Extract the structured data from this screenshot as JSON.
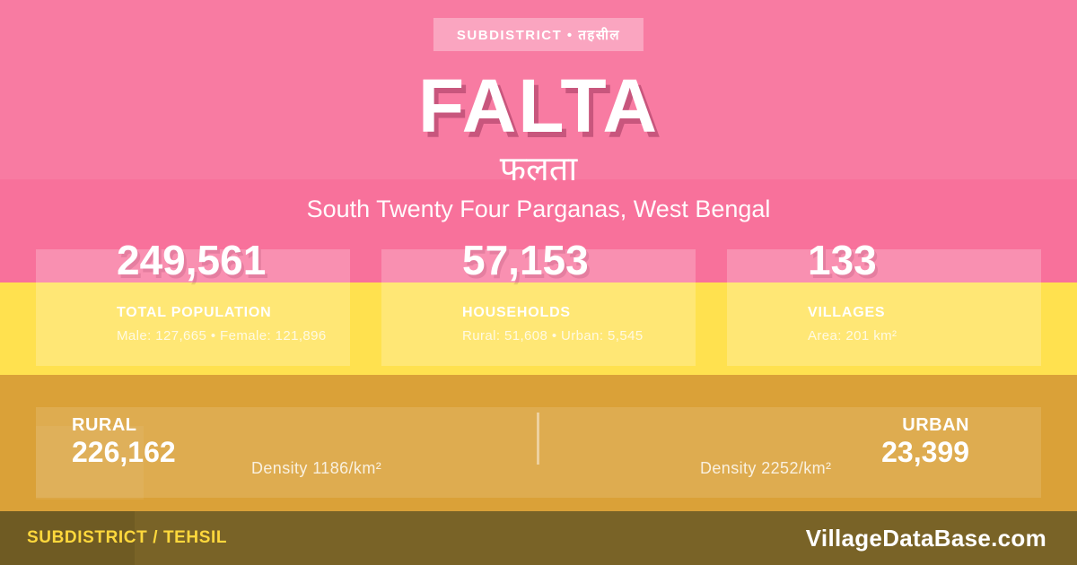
{
  "badge": {
    "label": "SUBDISTRICT • तहसील"
  },
  "title": "FALTA",
  "title_native": "फलता",
  "subtitle": "South Twenty Four Parganas, West Bengal",
  "stats": [
    {
      "value": "249,561",
      "label": "TOTAL POPULATION",
      "detail": "Male: 127,665 • Female: 121,896"
    },
    {
      "value": "57,153",
      "label": "HOUSEHOLDS",
      "detail": "Rural: 51,608 • Urban: 5,545"
    },
    {
      "value": "133",
      "label": "VILLAGES",
      "detail": "Area: 201 km²"
    }
  ],
  "density_band": {
    "rural": {
      "label": "RURAL",
      "value": "226,162",
      "density": "Density 1186/km²"
    },
    "urban": {
      "label": "URBAN",
      "value": "23,399",
      "density": "Density 2252/km²"
    }
  },
  "footer": {
    "type_label": "SUBDISTRICT / TEHSIL",
    "brand": "VillageDataBase.com"
  },
  "colors": {
    "pink": "#F8719B",
    "yellow": "#FFE14F",
    "gold": "#DAA138",
    "footer_bg": "#796327",
    "footer_accent": "#FFD83C"
  }
}
